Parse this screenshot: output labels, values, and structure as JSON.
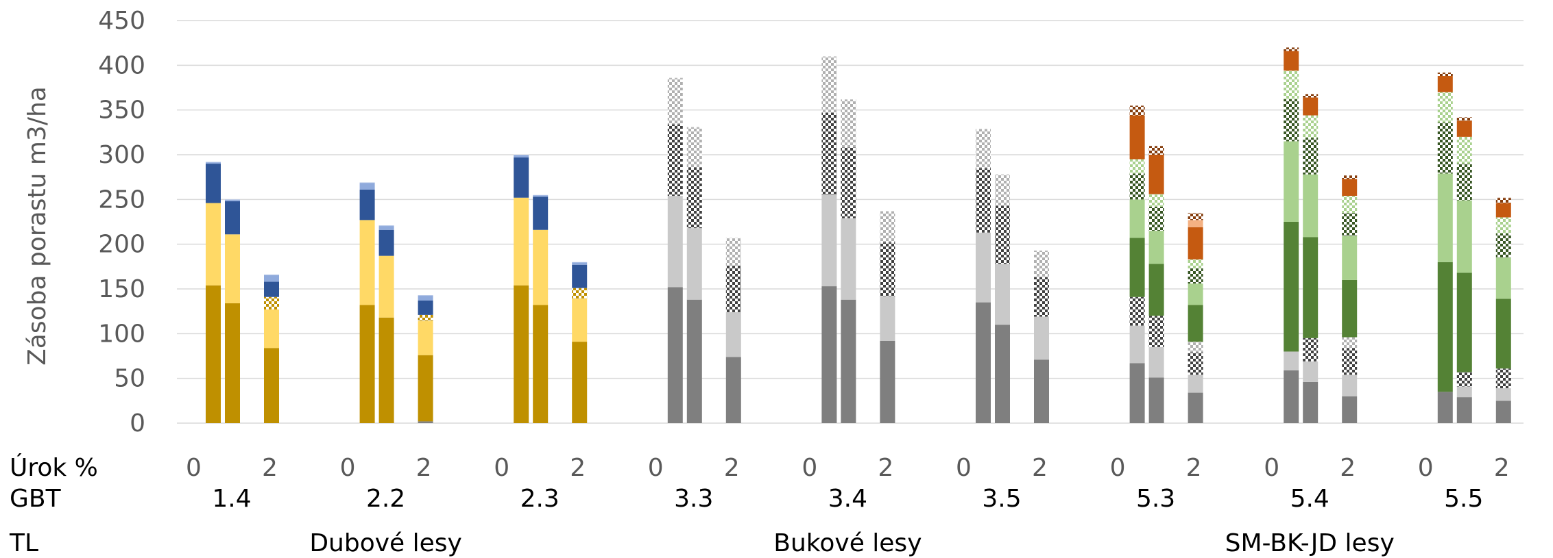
{
  "chart_data": {
    "type": "bar",
    "stacked": true,
    "ylabel": "Zásoba porastu m3/ha",
    "ylim": [
      0,
      450
    ],
    "yticks": [
      0,
      50,
      100,
      150,
      200,
      250,
      300,
      350,
      400,
      450
    ],
    "grid": true,
    "row_labels": {
      "rate": "Úrok %",
      "gbt": "GBT",
      "tl": "TL"
    },
    "rate_ticks": [
      "0",
      "2"
    ],
    "forest_types": [
      {
        "name": "Dubové lesy",
        "gbts": [
          "1.4",
          "2.2",
          "2.3"
        ]
      },
      {
        "name": "Bukové lesy",
        "gbts": [
          "3.3",
          "3.4",
          "3.5"
        ]
      },
      {
        "name": "SM-BK-JD lesy",
        "gbts": [
          "5.3",
          "5.4",
          "5.5"
        ]
      }
    ],
    "segment_styles": [
      {
        "key": "s1",
        "color": "#bf9000",
        "pattern": "solid"
      },
      {
        "key": "s2",
        "color": "#ffd966",
        "pattern": "solid"
      },
      {
        "key": "s3",
        "color": "#bf9000",
        "pattern": "checker"
      },
      {
        "key": "s4",
        "color": "#2f5597",
        "pattern": "solid"
      },
      {
        "key": "s5",
        "color": "#8faadc",
        "pattern": "solid"
      },
      {
        "key": "b1",
        "color": "#7f7f7f",
        "pattern": "solid"
      },
      {
        "key": "b2",
        "color": "#c9c9c9",
        "pattern": "solid"
      },
      {
        "key": "b3",
        "color": "#404040",
        "pattern": "checker"
      },
      {
        "key": "b4",
        "color": "#b0b0b0",
        "pattern": "checker"
      },
      {
        "key": "g1",
        "color": "#548235",
        "pattern": "solid"
      },
      {
        "key": "g2",
        "color": "#a9d18e",
        "pattern": "solid"
      },
      {
        "key": "g3",
        "color": "#375623",
        "pattern": "checker"
      },
      {
        "key": "g4",
        "color": "#a9d18e",
        "pattern": "checker"
      },
      {
        "key": "o1",
        "color": "#c55a11",
        "pattern": "solid"
      },
      {
        "key": "o2",
        "color": "#f4b183",
        "pattern": "solid"
      },
      {
        "key": "o3",
        "color": "#843c0c",
        "pattern": "checker"
      }
    ],
    "groups": [
      {
        "gbt": "1.4",
        "bars": [
          {
            "rate": 0,
            "segments": [
              [
                "s1",
                154
              ],
              [
                "s2",
                92
              ],
              [
                "s4",
                44
              ],
              [
                "s5",
                2
              ]
            ]
          },
          {
            "rate": 1,
            "segments": [
              [
                "s1",
                134
              ],
              [
                "s2",
                77
              ],
              [
                "s4",
                37
              ],
              [
                "s5",
                2
              ]
            ]
          },
          {
            "rate": 2,
            "segments": [
              [
                "s1",
                84
              ],
              [
                "s2",
                43
              ],
              [
                "s3",
                14
              ],
              [
                "s4",
                17
              ],
              [
                "s5",
                8
              ]
            ]
          }
        ]
      },
      {
        "gbt": "2.2",
        "bars": [
          {
            "rate": 0,
            "segments": [
              [
                "s1",
                132
              ],
              [
                "s2",
                95
              ],
              [
                "s4",
                34
              ],
              [
                "s5",
                8
              ]
            ]
          },
          {
            "rate": 1,
            "segments": [
              [
                "s1",
                118
              ],
              [
                "s2",
                69
              ],
              [
                "s4",
                29
              ],
              [
                "s5",
                5
              ]
            ]
          },
          {
            "rate": 2,
            "segments": [
              [
                "b1",
                2
              ],
              [
                "s1",
                74
              ],
              [
                "s2",
                38
              ],
              [
                "s3",
                7
              ],
              [
                "s4",
                16
              ],
              [
                "s5",
                6
              ]
            ]
          }
        ]
      },
      {
        "gbt": "2.3",
        "bars": [
          {
            "rate": 0,
            "segments": [
              [
                "s1",
                154
              ],
              [
                "s2",
                98
              ],
              [
                "s4",
                45
              ],
              [
                "s5",
                3
              ]
            ]
          },
          {
            "rate": 1,
            "segments": [
              [
                "s1",
                132
              ],
              [
                "s2",
                84
              ],
              [
                "s4",
                37
              ],
              [
                "s5",
                2
              ]
            ]
          },
          {
            "rate": 2,
            "segments": [
              [
                "s1",
                91
              ],
              [
                "s2",
                48
              ],
              [
                "s3",
                12
              ],
              [
                "s4",
                26
              ],
              [
                "s5",
                3
              ]
            ]
          }
        ]
      },
      {
        "gbt": "3.3",
        "bars": [
          {
            "rate": 0,
            "segments": [
              [
                "b1",
                152
              ],
              [
                "b2",
                102
              ],
              [
                "b3",
                80
              ],
              [
                "b4",
                52
              ]
            ]
          },
          {
            "rate": 1,
            "segments": [
              [
                "b1",
                138
              ],
              [
                "b2",
                80
              ],
              [
                "b3",
                68
              ],
              [
                "b4",
                45
              ]
            ]
          },
          {
            "rate": 2,
            "segments": [
              [
                "b1",
                74
              ],
              [
                "b2",
                50
              ],
              [
                "b3",
                52
              ],
              [
                "b4",
                31
              ]
            ]
          }
        ]
      },
      {
        "gbt": "3.4",
        "bars": [
          {
            "rate": 0,
            "segments": [
              [
                "b1",
                153
              ],
              [
                "b2",
                102
              ],
              [
                "b3",
                92
              ],
              [
                "b4",
                63
              ]
            ]
          },
          {
            "rate": 1,
            "segments": [
              [
                "b1",
                138
              ],
              [
                "b2",
                91
              ],
              [
                "b3",
                79
              ],
              [
                "b4",
                54
              ]
            ]
          },
          {
            "rate": 2,
            "segments": [
              [
                "b1",
                92
              ],
              [
                "b2",
                50
              ],
              [
                "b3",
                60
              ],
              [
                "b4",
                35
              ]
            ]
          }
        ]
      },
      {
        "gbt": "3.5",
        "bars": [
          {
            "rate": 0,
            "segments": [
              [
                "b1",
                135
              ],
              [
                "b2",
                78
              ],
              [
                "b3",
                72
              ],
              [
                "b4",
                44
              ]
            ]
          },
          {
            "rate": 1,
            "segments": [
              [
                "b1",
                110
              ],
              [
                "b2",
                68
              ],
              [
                "b3",
                65
              ],
              [
                "b4",
                35
              ]
            ]
          },
          {
            "rate": 2,
            "segments": [
              [
                "b1",
                71
              ],
              [
                "b2",
                48
              ],
              [
                "b3",
                44
              ],
              [
                "b4",
                30
              ]
            ]
          }
        ]
      },
      {
        "gbt": "5.3",
        "bars": [
          {
            "rate": 0,
            "segments": [
              [
                "b1",
                67
              ],
              [
                "b2",
                42
              ],
              [
                "b3",
                32
              ],
              [
                "g1",
                66
              ],
              [
                "g2",
                43
              ],
              [
                "g3",
                29
              ],
              [
                "g4",
                16
              ],
              [
                "o1",
                49
              ],
              [
                "o3",
                11
              ]
            ]
          },
          {
            "rate": 1,
            "segments": [
              [
                "b1",
                51
              ],
              [
                "b2",
                34
              ],
              [
                "b3",
                35
              ],
              [
                "g1",
                58
              ],
              [
                "g2",
                37
              ],
              [
                "g3",
                27
              ],
              [
                "g4",
                14
              ],
              [
                "o1",
                44
              ],
              [
                "o3",
                10
              ]
            ]
          },
          {
            "rate": 2,
            "segments": [
              [
                "b1",
                34
              ],
              [
                "b2",
                20
              ],
              [
                "b3",
                25
              ],
              [
                "b4",
                12
              ],
              [
                "g1",
                41
              ],
              [
                "g2",
                24
              ],
              [
                "g3",
                17
              ],
              [
                "g4",
                10
              ],
              [
                "o1",
                36
              ],
              [
                "o2",
                8
              ],
              [
                "o3",
                8
              ]
            ]
          }
        ]
      },
      {
        "gbt": "5.4",
        "bars": [
          {
            "rate": 0,
            "segments": [
              [
                "b1",
                59
              ],
              [
                "b2",
                21
              ],
              [
                "g1",
                145
              ],
              [
                "g2",
                90
              ],
              [
                "g3",
                47
              ],
              [
                "g4",
                32
              ],
              [
                "o1",
                22
              ],
              [
                "o3",
                4
              ]
            ]
          },
          {
            "rate": 1,
            "segments": [
              [
                "b1",
                46
              ],
              [
                "b2",
                23
              ],
              [
                "b3",
                26
              ],
              [
                "g1",
                113
              ],
              [
                "g2",
                70
              ],
              [
                "g3",
                41
              ],
              [
                "g4",
                25
              ],
              [
                "o1",
                20
              ],
              [
                "o3",
                4
              ]
            ]
          },
          {
            "rate": 2,
            "segments": [
              [
                "b1",
                30
              ],
              [
                "b2",
                24
              ],
              [
                "b3",
                30
              ],
              [
                "b4",
                12
              ],
              [
                "g1",
                64
              ],
              [
                "g2",
                49
              ],
              [
                "g3",
                26
              ],
              [
                "g4",
                19
              ],
              [
                "o1",
                19
              ],
              [
                "o3",
                4
              ]
            ]
          }
        ]
      },
      {
        "gbt": "5.5",
        "bars": [
          {
            "rate": 0,
            "segments": [
              [
                "b1",
                35
              ],
              [
                "g1",
                145
              ],
              [
                "g2",
                99
              ],
              [
                "g3",
                57
              ],
              [
                "g4",
                34
              ],
              [
                "o1",
                18
              ],
              [
                "o3",
                4
              ]
            ]
          },
          {
            "rate": 1,
            "segments": [
              [
                "b1",
                29
              ],
              [
                "b2",
                12
              ],
              [
                "b3",
                16
              ],
              [
                "g1",
                111
              ],
              [
                "g2",
                81
              ],
              [
                "g3",
                41
              ],
              [
                "g4",
                30
              ],
              [
                "o1",
                18
              ],
              [
                "o3",
                4
              ]
            ]
          },
          {
            "rate": 2,
            "segments": [
              [
                "b1",
                25
              ],
              [
                "b2",
                14
              ],
              [
                "b3",
                22
              ],
              [
                "g1",
                78
              ],
              [
                "g2",
                46
              ],
              [
                "g3",
                27
              ],
              [
                "g4",
                18
              ],
              [
                "o1",
                16
              ],
              [
                "o3",
                6
              ]
            ]
          }
        ]
      }
    ]
  }
}
